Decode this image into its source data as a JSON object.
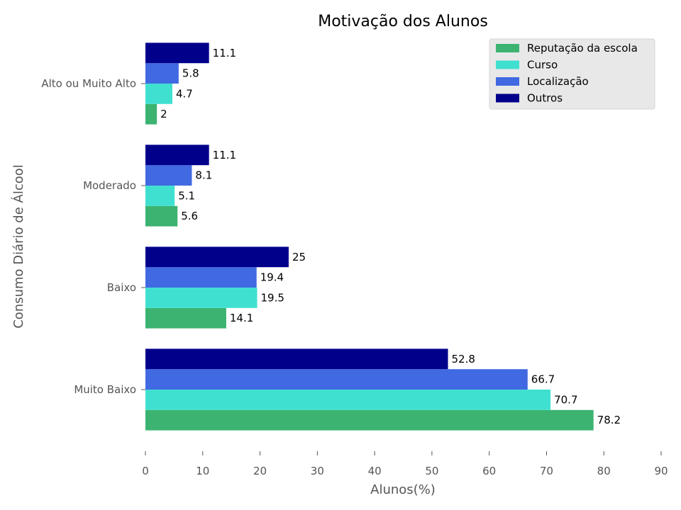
{
  "chart_data": {
    "type": "bar",
    "orientation": "horizontal",
    "title": "Motivação dos Alunos",
    "xlabel": "Alunos(%)",
    "ylabel": "Consumo Diário de Álcool",
    "xlim": [
      0,
      90
    ],
    "xticks": [
      "0",
      "10",
      "20",
      "30",
      "40",
      "50",
      "60",
      "70",
      "80",
      "90"
    ],
    "categories": [
      "Muito Baixo",
      "Baixo",
      "Moderado",
      "Alto ou Muito Alto"
    ],
    "series": [
      {
        "name": "Reputação da escola",
        "color": "#3cb371",
        "values": [
          78.2,
          14.1,
          5.6,
          2
        ],
        "labels": [
          "78.2",
          "14.1",
          "5.6",
          "2"
        ]
      },
      {
        "name": "Curso",
        "color": "#40e0d0",
        "values": [
          70.7,
          19.5,
          5.1,
          4.7
        ],
        "labels": [
          "70.7",
          "19.5",
          "5.1",
          "4.7"
        ]
      },
      {
        "name": "Localização",
        "color": "#4169e1",
        "values": [
          66.7,
          19.4,
          8.1,
          5.8
        ],
        "labels": [
          "66.7",
          "19.4",
          "8.1",
          "5.8"
        ]
      },
      {
        "name": "Outros",
        "color": "#00008b",
        "values": [
          52.8,
          25,
          11.1,
          11.1
        ],
        "labels": [
          "52.8",
          "25",
          "11.1",
          "11.1"
        ]
      }
    ],
    "legend": {
      "position": "top-right",
      "background": "#e8e8e8"
    },
    "grid": false
  }
}
